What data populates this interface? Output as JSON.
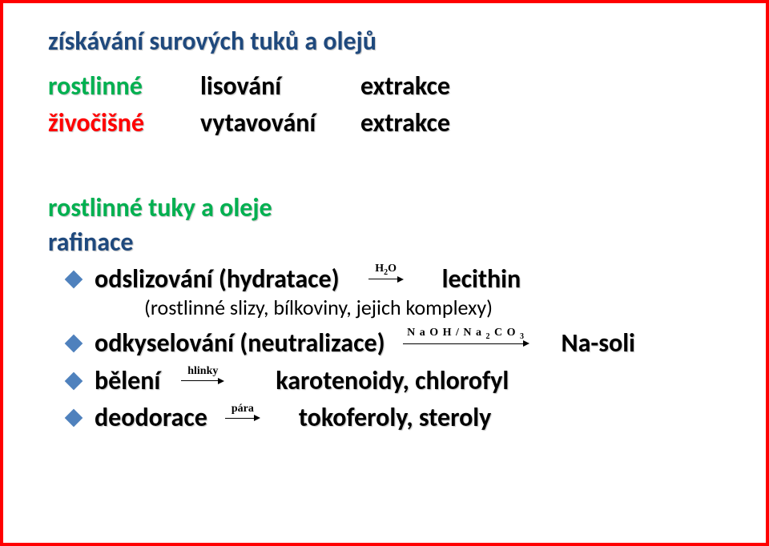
{
  "colors": {
    "border": "#ff0000",
    "title_color": "#1f497d",
    "green": "#00b050",
    "black": "#000000",
    "red": "#ff0000",
    "diamond": "#4f81bd"
  },
  "title": "získávání surových tuků a olejů",
  "row1": {
    "left": "rostlinné",
    "mid": "lisování",
    "right": "extrakce"
  },
  "row2": {
    "left": "živočišné",
    "mid": "vytavování",
    "right": "extrakce"
  },
  "section": "rostlinné tuky a oleje",
  "subsection": "rafinace",
  "items": {
    "odsliz": {
      "label": "odslizování (hydratace)",
      "arrow_label_html": "H<span class=\"sub\">2</span>O",
      "arrow_width": 36,
      "result": "lecithin",
      "subnote": "(rostlinné slizy, bílkoviny, jejich komplexy)"
    },
    "odkys": {
      "label": "odkyselování (neutralizace)",
      "arrow_label_html": "N a O H / N a <span class=\"sub\">2</span> C O <span class=\"sub\">3</span>",
      "arrow_width": 150,
      "result": "Na-soli"
    },
    "beleni": {
      "label": "bělení",
      "arrow_label": "hlinky",
      "arrow_width": 46,
      "result": "karotenoidy, chlorofyl",
      "gap_before_arrow": 10,
      "gap_after_arrow": 48
    },
    "deodor": {
      "label": "deodorace",
      "arrow_label": "pára",
      "arrow_width": 36,
      "result": "tokoferoly, steroly",
      "gap_before_arrow": 6,
      "gap_after_arrow": 32
    }
  }
}
